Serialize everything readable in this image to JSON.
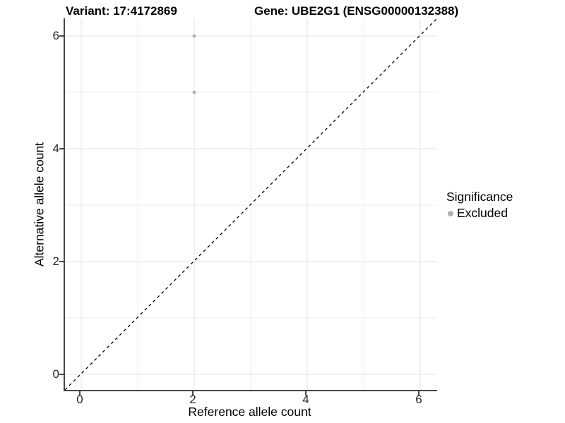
{
  "header": {
    "variant_title": "Variant: 17:4172869",
    "gene_title": "Gene: UBE2G1 (ENSG00000132388)"
  },
  "legend": {
    "title": "Significance",
    "items": [
      {
        "label": "Excluded",
        "color": "#b0b0b0"
      }
    ]
  },
  "chart_data": {
    "type": "scatter",
    "title": "Variant: 17:4172869   Gene: UBE2G1 (ENSG00000132388)",
    "xlabel": "Reference allele count",
    "ylabel": "Alternative allele count",
    "xlim": [
      -0.3,
      6.3
    ],
    "ylim": [
      -0.3,
      6.3
    ],
    "x_ticks": [
      0,
      2,
      4,
      6
    ],
    "y_ticks": [
      0,
      2,
      4,
      6
    ],
    "x_minor_gridlines": [
      1,
      3,
      5
    ],
    "y_minor_gridlines": [
      1,
      3,
      5
    ],
    "grid": true,
    "legend_position": "right",
    "series": [
      {
        "name": "Excluded",
        "color": "#b0b0b0",
        "marker": "circle",
        "points": [
          {
            "x": 2,
            "y": 6
          },
          {
            "x": 2,
            "y": 5
          }
        ]
      }
    ],
    "reference_line": {
      "type": "identity",
      "equation": "y = x",
      "style": "dashed",
      "color": "#000000"
    }
  },
  "colors": {
    "background": "#ffffff",
    "grid_major": "#e3e3e3",
    "grid_minor": "#ededed",
    "axis_line": "#464646",
    "point": "#b0b0b0",
    "text": "#000000"
  }
}
